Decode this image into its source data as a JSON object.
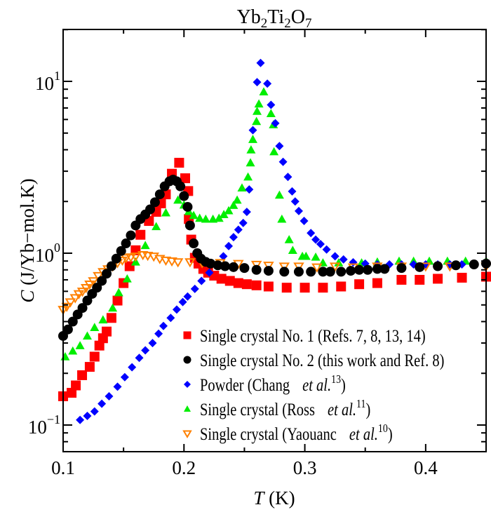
{
  "chart_data": {
    "type": "scatter",
    "title": {
      "parts": [
        "Yb",
        "2",
        "Ti",
        "2",
        "O",
        "7"
      ]
    },
    "xlabel": {
      "symbol": "T",
      "unit": " (K)"
    },
    "ylabel": {
      "symbol": "C",
      "unit": " (J/Yb−mol.K)"
    },
    "xlim": [
      0.1,
      0.45
    ],
    "ylim": [
      0.07,
      20
    ],
    "yscale": "log",
    "grid": false,
    "legend_position": "bottom-right",
    "x_ticks": [
      {
        "value": 0.1,
        "label": "0.1"
      },
      {
        "value": 0.2,
        "label": "0.2"
      },
      {
        "value": 0.3,
        "label": "0.3"
      },
      {
        "value": 0.4,
        "label": "0.4"
      }
    ],
    "y_ticks": [
      {
        "value": 0.1,
        "base": "10",
        "exp": "−1"
      },
      {
        "value": 1,
        "base": "10",
        "exp": "0"
      },
      {
        "value": 10,
        "base": "10",
        "exp": "1"
      }
    ],
    "series": [
      {
        "name": "Single crystal No. 1 (Refs. 7, 8, 13, 14)",
        "legend": {
          "prefix": "Single crystal No. 1 (Refs. 7, 8, 13, 14)",
          "etal": "",
          "ref": "",
          "suffix": ""
        },
        "marker": "square",
        "color": "#ff0000",
        "x": [
          0.1,
          0.107,
          0.1105,
          0.1157,
          0.122,
          0.126,
          0.13,
          0.133,
          0.136,
          0.14,
          0.145,
          0.15,
          0.155,
          0.16,
          0.164,
          0.171,
          0.177,
          0.181,
          0.185,
          0.19,
          0.196,
          0.201,
          0.2035,
          0.204,
          0.206,
          0.209,
          0.212,
          0.216,
          0.22,
          0.225,
          0.231,
          0.238,
          0.245,
          0.252,
          0.26,
          0.27,
          0.285,
          0.3,
          0.315,
          0.33,
          0.345,
          0.36,
          0.38,
          0.395,
          0.41,
          0.43,
          0.45
        ],
        "y": [
          0.147,
          0.154,
          0.17,
          0.195,
          0.218,
          0.25,
          0.29,
          0.32,
          0.35,
          0.42,
          0.53,
          0.67,
          0.84,
          1.04,
          1.28,
          1.54,
          1.74,
          1.95,
          2.2,
          2.9,
          3.36,
          2.73,
          2.3,
          1.58,
          1.2,
          0.94,
          0.87,
          0.81,
          0.77,
          0.74,
          0.71,
          0.69,
          0.67,
          0.66,
          0.65,
          0.64,
          0.63,
          0.63,
          0.63,
          0.64,
          0.66,
          0.67,
          0.7,
          0.7,
          0.71,
          0.72,
          0.73
        ]
      },
      {
        "name": "Single crystal No. 2 (this work and Ref. 8)",
        "legend": {
          "prefix": "Single crystal No. 2 (this work and Ref. 8)",
          "etal": "",
          "ref": "",
          "suffix": ""
        },
        "marker": "circle",
        "color": "#000000",
        "x": [
          0.1,
          0.104,
          0.108,
          0.112,
          0.116,
          0.12,
          0.124,
          0.128,
          0.132,
          0.136,
          0.14,
          0.144,
          0.148,
          0.152,
          0.156,
          0.16,
          0.164,
          0.168,
          0.172,
          0.176,
          0.18,
          0.184,
          0.188,
          0.191,
          0.194,
          0.197,
          0.2,
          0.203,
          0.205,
          0.208,
          0.211,
          0.214,
          0.218,
          0.222,
          0.228,
          0.234,
          0.241,
          0.25,
          0.26,
          0.27,
          0.283,
          0.295,
          0.305,
          0.315,
          0.321,
          0.33,
          0.338,
          0.345,
          0.352,
          0.36,
          0.366,
          0.38,
          0.395,
          0.41,
          0.425,
          0.44,
          0.45
        ],
        "y": [
          0.33,
          0.36,
          0.4,
          0.44,
          0.48,
          0.53,
          0.58,
          0.63,
          0.69,
          0.76,
          0.84,
          0.93,
          1.03,
          1.14,
          1.27,
          1.45,
          1.58,
          1.68,
          1.8,
          1.98,
          2.2,
          2.45,
          2.62,
          2.68,
          2.62,
          2.45,
          2.15,
          1.86,
          1.45,
          1.14,
          1.0,
          0.93,
          0.89,
          0.87,
          0.85,
          0.84,
          0.83,
          0.82,
          0.8,
          0.79,
          0.78,
          0.78,
          0.78,
          0.78,
          0.78,
          0.78,
          0.79,
          0.8,
          0.8,
          0.81,
          0.81,
          0.82,
          0.83,
          0.84,
          0.85,
          0.86,
          0.87
        ]
      },
      {
        "name": "Powder (Chang et al.13)",
        "legend": {
          "prefix": "Powder (Chang",
          "etal": "et al.",
          "ref": "13",
          "suffix": ")"
        },
        "marker": "diamond",
        "color": "#0000ff",
        "x": [
          0.114,
          0.12,
          0.126,
          0.132,
          0.138,
          0.145,
          0.151,
          0.157,
          0.163,
          0.168,
          0.174,
          0.179,
          0.183,
          0.189,
          0.194,
          0.199,
          0.203,
          0.209,
          0.2145,
          0.221,
          0.227,
          0.2326,
          0.237,
          0.241,
          0.245,
          0.249,
          0.252,
          0.254,
          0.257,
          0.2605,
          0.2634,
          0.269,
          0.272,
          0.2756,
          0.279,
          0.282,
          0.286,
          0.2895,
          0.292,
          0.295,
          0.2994,
          0.305,
          0.309,
          0.313,
          0.318,
          0.325,
          0.332,
          0.34,
          0.35,
          0.36,
          0.37,
          0.38,
          0.39,
          0.4,
          0.41,
          0.42,
          0.43,
          0.44,
          0.45
        ],
        "y": [
          0.107,
          0.113,
          0.12,
          0.133,
          0.147,
          0.167,
          0.19,
          0.217,
          0.246,
          0.272,
          0.3,
          0.34,
          0.377,
          0.42,
          0.47,
          0.52,
          0.56,
          0.62,
          0.69,
          0.77,
          0.86,
          0.96,
          1.1,
          1.24,
          1.37,
          1.5,
          1.74,
          2.35,
          5.2,
          9.9,
          12.8,
          9.7,
          7.3,
          5.7,
          4.2,
          3.4,
          2.78,
          2.29,
          2.0,
          1.76,
          1.54,
          1.31,
          1.2,
          1.13,
          1.05,
          0.96,
          0.92,
          0.885,
          0.87,
          0.86,
          0.86,
          0.86,
          0.86,
          0.86,
          0.86,
          0.86,
          0.86,
          0.86,
          0.86
        ]
      },
      {
        "name": "Single crystal (Ross et al.11)",
        "legend": {
          "prefix": "Single crystal (Ross",
          "etal": "et al.",
          "ref": "11",
          "suffix": ")"
        },
        "marker": "triangle-up",
        "color": "#00ee00",
        "x": [
          0.1017,
          0.108,
          0.114,
          0.12,
          0.126,
          0.133,
          0.141,
          0.146,
          0.153,
          0.16,
          0.168,
          0.177,
          0.185,
          0.195,
          0.2,
          0.204,
          0.208,
          0.213,
          0.218,
          0.224,
          0.229,
          0.233,
          0.237,
          0.241,
          0.244,
          0.248,
          0.253,
          0.255,
          0.2555,
          0.257,
          0.26,
          0.2605,
          0.262,
          0.266,
          0.272,
          0.274,
          0.2745,
          0.279,
          0.281,
          0.287,
          0.29,
          0.298,
          0.301,
          0.309,
          0.315,
          0.328,
          0.347,
          0.36,
          0.378,
          0.39,
          0.403,
          0.418,
          0.433,
          0.45
        ],
        "y": [
          0.25,
          0.27,
          0.29,
          0.33,
          0.37,
          0.41,
          0.48,
          0.59,
          0.71,
          0.89,
          1.11,
          1.43,
          1.72,
          2.04,
          1.91,
          1.75,
          1.66,
          1.6,
          1.58,
          1.58,
          1.6,
          1.68,
          1.77,
          1.9,
          2.04,
          2.4,
          2.78,
          3.36,
          4.0,
          4.6,
          5.85,
          6.7,
          7.4,
          8.7,
          6.5,
          5.6,
          3.9,
          2.18,
          1.58,
          1.2,
          1.04,
          0.96,
          0.96,
          0.95,
          0.88,
          0.88,
          0.88,
          0.89,
          0.9,
          0.9,
          0.9,
          0.9,
          0.9,
          0.9
        ]
      },
      {
        "name": "Single crystal (Yaouanc et al.10)",
        "legend": {
          "prefix": "Single crystal (Yaouanc",
          "etal": "et al.",
          "ref": "10",
          "suffix": ")"
        },
        "marker": "triangle-down-open",
        "color": "#ff8000",
        "x": [
          0.1,
          0.103,
          0.106,
          0.11,
          0.113,
          0.116,
          0.119,
          0.122,
          0.125,
          0.129,
          0.133,
          0.137,
          0.141,
          0.145,
          0.149,
          0.152,
          0.156,
          0.16,
          0.166,
          0.17,
          0.175,
          0.18,
          0.185,
          0.19,
          0.195,
          0.205,
          0.215,
          0.23,
          0.245,
          0.26,
          0.27,
          0.283,
          0.295,
          0.31,
          0.325,
          0.34,
          0.36,
          0.38,
          0.4,
          0.42,
          0.45
        ],
        "y": [
          0.47,
          0.49,
          0.52,
          0.55,
          0.58,
          0.6,
          0.63,
          0.66,
          0.69,
          0.74,
          0.78,
          0.81,
          0.84,
          0.88,
          0.91,
          0.94,
          0.95,
          0.96,
          0.98,
          0.97,
          0.96,
          0.93,
          0.91,
          0.9,
          0.89,
          0.89,
          0.88,
          0.88,
          0.87,
          0.86,
          0.85,
          0.84,
          0.84,
          0.83,
          0.84,
          0.83,
          0.84,
          0.84,
          0.84,
          0.84,
          0.84
        ]
      }
    ]
  }
}
